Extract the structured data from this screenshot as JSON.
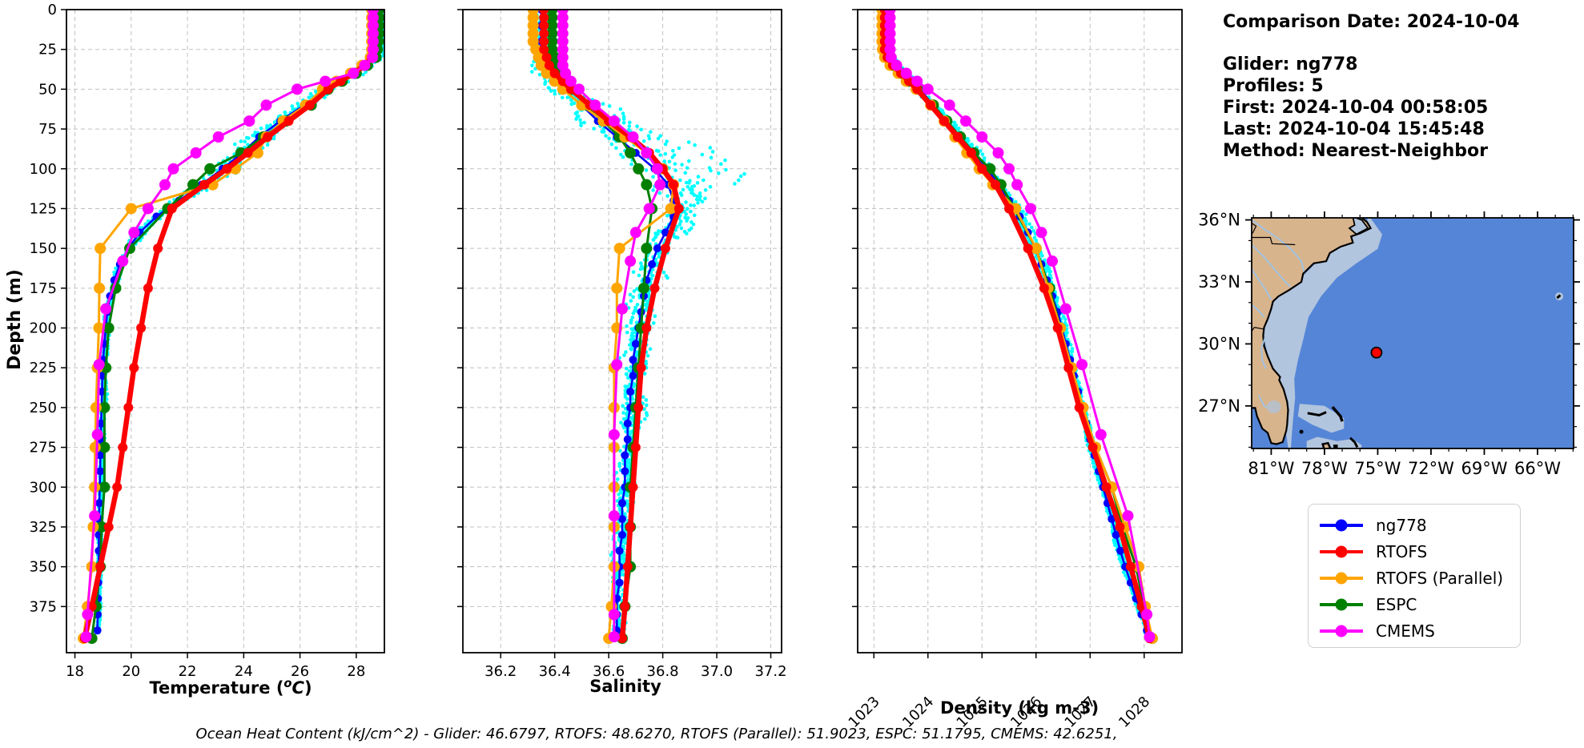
{
  "info_panel": {
    "comparison_date": "Comparison Date: 2024-10-04",
    "glider": "Glider: ng778",
    "profiles": "Profiles: 5",
    "first": "First: 2024-10-04 00:58:05",
    "last": "Last: 2024-10-04 15:45:48",
    "method": "Method: Nearest-Neighbor"
  },
  "footer": {
    "text": "Ocean Heat Content (kJ/cm^2) - Glider: 46.6797,  RTOFS: 48.6270,  RTOFS (Parallel): 51.9023,  ESPC: 51.1795,  CMEMS: 42.6251,"
  },
  "legend": {
    "items": [
      {
        "label": "ng778",
        "color": "#0000ff"
      },
      {
        "label": "RTOFS",
        "color": "#ff0000"
      },
      {
        "label": "RTOFS (Parallel)",
        "color": "#ffa500"
      },
      {
        "label": "ESPC",
        "color": "#008000"
      },
      {
        "label": "CMEMS",
        "color": "#ff00ff"
      }
    ]
  },
  "axis_titles": {
    "depth": "Depth (m)",
    "temperature_prefix": "Temperature (",
    "temperature_sup": "o",
    "temperature_ital": "C",
    "temperature_suffix": ")",
    "salinity": "Salinity",
    "density": "Density (kg m-3)"
  },
  "chart_data": {
    "type": "line",
    "subtype": "ocean-depth-profiles",
    "ylabel": "Depth (m)",
    "ylim": [
      0,
      404
    ],
    "yticks": [
      0,
      25,
      50,
      75,
      100,
      125,
      150,
      175,
      200,
      225,
      250,
      275,
      300,
      325,
      350,
      375
    ],
    "grid": true,
    "legend_position": "lower right (separate box)",
    "panels": [
      {
        "id": "temperature",
        "xlabel": "Temperature (°C)",
        "xlim": [
          17.7,
          29.0
        ],
        "xticks": [
          18,
          20,
          22,
          24,
          26,
          28
        ],
        "xtick_labels": [
          "18",
          "20",
          "22",
          "24",
          "26",
          "28"
        ],
        "tick_rotation": 0
      },
      {
        "id": "salinity",
        "xlabel": "Salinity",
        "xlim": [
          36.06,
          37.24
        ],
        "xticks": [
          36.2,
          36.4,
          36.6,
          36.8,
          37.0,
          37.2
        ],
        "xtick_labels": [
          "36.2",
          "36.4",
          "36.6",
          "36.8",
          "37.0",
          "37.2"
        ],
        "tick_rotation": 0
      },
      {
        "id": "density",
        "xlabel": "Density (kg m-3)",
        "xlim": [
          1022.7,
          1028.7
        ],
        "xticks": [
          1023,
          1024,
          1025,
          1026,
          1027,
          1028
        ],
        "xtick_labels": [
          "1023",
          "1024",
          "1025",
          "1026",
          "1027",
          "1028"
        ],
        "tick_rotation": 45
      }
    ],
    "series": [
      {
        "name": "ng778",
        "color": "#0000ff",
        "line_width": 2.6,
        "marker_r": 5,
        "depths": [
          0,
          10,
          20,
          30,
          40,
          50,
          60,
          70,
          80,
          90,
          100,
          110,
          120,
          130,
          140,
          150,
          160,
          170,
          180,
          190,
          200,
          210,
          220,
          230,
          240,
          250,
          260,
          270,
          280,
          290,
          300,
          310,
          320,
          330,
          340,
          350,
          360,
          370,
          380,
          390
        ],
        "temperature": [
          28.75,
          28.75,
          28.74,
          28.7,
          27.95,
          26.9,
          26.15,
          25.3,
          24.55,
          23.95,
          23.25,
          22.5,
          21.7,
          20.9,
          20.3,
          19.9,
          19.6,
          19.4,
          19.25,
          19.15,
          19.1,
          19.05,
          19.0,
          18.98,
          18.96,
          18.95,
          18.93,
          18.92,
          18.9,
          18.9,
          18.88,
          18.87,
          18.86,
          18.85,
          18.85,
          18.84,
          18.83,
          18.82,
          18.81,
          18.8
        ],
        "salinity": [
          36.35,
          36.35,
          36.35,
          36.35,
          36.38,
          36.43,
          36.5,
          36.56,
          36.63,
          36.7,
          36.77,
          36.82,
          36.84,
          36.84,
          36.81,
          36.78,
          36.76,
          36.74,
          36.73,
          36.72,
          36.71,
          36.7,
          36.69,
          36.69,
          36.68,
          36.68,
          36.67,
          36.67,
          36.66,
          36.66,
          36.66,
          36.65,
          36.65,
          36.65,
          36.64,
          36.64,
          36.64,
          36.63,
          36.63,
          36.63
        ],
        "density": [
          1023.25,
          1023.25,
          1023.25,
          1023.3,
          1023.55,
          1023.85,
          1024.1,
          1024.35,
          1024.6,
          1024.85,
          1025.1,
          1025.3,
          1025.5,
          1025.7,
          1025.85,
          1025.98,
          1026.1,
          1026.2,
          1026.3,
          1026.4,
          1026.48,
          1026.55,
          1026.63,
          1026.7,
          1026.78,
          1026.85,
          1026.93,
          1027.0,
          1027.08,
          1027.16,
          1027.24,
          1027.32,
          1027.4,
          1027.48,
          1027.56,
          1027.65,
          1027.75,
          1027.85,
          1027.95,
          1028.05
        ]
      },
      {
        "name": "RTOFS",
        "color": "#ff0000",
        "line_width": 6.5,
        "marker_r": 6,
        "depths": [
          0,
          5,
          10,
          15,
          20,
          25,
          30,
          35,
          40,
          45,
          50,
          60,
          70,
          80,
          90,
          100,
          110,
          125,
          150,
          175,
          200,
          225,
          250,
          275,
          300,
          325,
          350,
          375,
          395
        ],
        "temperature": [
          28.6,
          28.6,
          28.6,
          28.6,
          28.6,
          28.6,
          28.55,
          28.3,
          27.9,
          27.45,
          27.0,
          26.35,
          25.6,
          24.85,
          24.15,
          23.4,
          22.6,
          21.45,
          20.95,
          20.6,
          20.35,
          20.1,
          19.9,
          19.7,
          19.5,
          19.2,
          18.9,
          18.6,
          18.35
        ],
        "salinity": [
          36.36,
          36.36,
          36.36,
          36.36,
          36.36,
          36.36,
          36.37,
          36.38,
          36.4,
          36.43,
          36.46,
          36.53,
          36.6,
          36.68,
          36.75,
          36.8,
          36.84,
          36.86,
          36.81,
          36.77,
          36.74,
          36.72,
          36.71,
          36.7,
          36.69,
          36.68,
          36.67,
          36.66,
          36.65
        ],
        "density": [
          1023.2,
          1023.2,
          1023.2,
          1023.2,
          1023.2,
          1023.2,
          1023.25,
          1023.35,
          1023.5,
          1023.65,
          1023.8,
          1024.05,
          1024.3,
          1024.55,
          1024.8,
          1025.0,
          1025.25,
          1025.5,
          1025.85,
          1026.15,
          1026.4,
          1026.6,
          1026.8,
          1027.05,
          1027.3,
          1027.55,
          1027.75,
          1027.95,
          1028.1
        ]
      },
      {
        "name": "RTOFS (Parallel)",
        "color": "#ffa500",
        "line_width": 3,
        "marker_r": 7,
        "depths": [
          0,
          5,
          10,
          15,
          20,
          25,
          30,
          35,
          40,
          45,
          50,
          60,
          70,
          80,
          90,
          100,
          110,
          125,
          150,
          175,
          200,
          225,
          250,
          275,
          300,
          325,
          350,
          375,
          395
        ],
        "temperature": [
          28.55,
          28.55,
          28.55,
          28.55,
          28.55,
          28.55,
          28.5,
          28.2,
          27.8,
          27.3,
          26.8,
          26.2,
          25.4,
          24.8,
          24.5,
          23.7,
          22.9,
          20.0,
          18.9,
          18.87,
          18.85,
          18.8,
          18.75,
          18.72,
          18.7,
          18.65,
          18.6,
          18.45,
          18.3
        ],
        "salinity": [
          36.32,
          36.32,
          36.32,
          36.32,
          36.32,
          36.33,
          36.34,
          36.35,
          36.37,
          36.4,
          36.43,
          36.5,
          36.58,
          36.66,
          36.74,
          36.8,
          36.84,
          36.83,
          36.64,
          36.63,
          36.63,
          36.62,
          36.62,
          36.62,
          36.62,
          36.62,
          36.62,
          36.61,
          36.6
        ],
        "density": [
          1023.15,
          1023.15,
          1023.15,
          1023.15,
          1023.15,
          1023.16,
          1023.2,
          1023.3,
          1023.45,
          1023.6,
          1023.78,
          1024.05,
          1024.3,
          1024.5,
          1024.72,
          1024.95,
          1025.2,
          1025.62,
          1026.0,
          1026.22,
          1026.45,
          1026.66,
          1026.87,
          1027.1,
          1027.4,
          1027.65,
          1027.9,
          1028.02,
          1028.15
        ]
      },
      {
        "name": "ESPC",
        "color": "#008000",
        "line_width": 3,
        "marker_r": 7,
        "depths": [
          0,
          5,
          10,
          15,
          20,
          25,
          30,
          35,
          40,
          45,
          50,
          60,
          70,
          80,
          90,
          100,
          110,
          125,
          150,
          175,
          200,
          225,
          250,
          275,
          300,
          325,
          350,
          375,
          395
        ],
        "temperature": [
          28.8,
          28.8,
          28.8,
          28.8,
          28.78,
          28.75,
          28.7,
          28.4,
          28.0,
          27.5,
          27.0,
          26.4,
          25.5,
          24.7,
          23.9,
          22.8,
          22.2,
          21.3,
          19.95,
          19.45,
          19.2,
          19.1,
          19.05,
          19.05,
          19.05,
          18.95,
          18.9,
          18.75,
          18.6
        ],
        "salinity": [
          36.39,
          36.39,
          36.39,
          36.39,
          36.39,
          36.39,
          36.4,
          36.4,
          36.41,
          36.43,
          36.46,
          36.52,
          36.58,
          36.64,
          36.68,
          36.71,
          36.74,
          36.76,
          36.74,
          36.73,
          36.72,
          36.71,
          36.7,
          36.69,
          36.68,
          36.68,
          36.68,
          36.66,
          36.65
        ],
        "density": [
          1023.2,
          1023.2,
          1023.2,
          1023.2,
          1023.2,
          1023.21,
          1023.25,
          1023.35,
          1023.5,
          1023.65,
          1023.82,
          1024.1,
          1024.35,
          1024.6,
          1024.85,
          1025.15,
          1025.35,
          1025.6,
          1026.0,
          1026.25,
          1026.45,
          1026.65,
          1026.85,
          1027.1,
          1027.4,
          1027.6,
          1027.85,
          1028.0,
          1028.15
        ]
      },
      {
        "name": "CMEMS",
        "color": "#ff00ff",
        "line_width": 3,
        "marker_r": 7,
        "depths": [
          0,
          5,
          10,
          15,
          20,
          25,
          30,
          35,
          40,
          45,
          50,
          60,
          70,
          80,
          90,
          100,
          110,
          125,
          140,
          158,
          188,
          223,
          267,
          318,
          380,
          394
        ],
        "temperature": [
          28.6,
          28.6,
          28.6,
          28.6,
          28.6,
          28.6,
          28.58,
          28.3,
          27.9,
          26.9,
          25.9,
          24.8,
          24.2,
          23.1,
          22.3,
          21.5,
          21.2,
          20.6,
          20.1,
          19.7,
          19.1,
          18.86,
          18.8,
          18.7,
          18.45,
          18.4
        ],
        "salinity": [
          36.43,
          36.43,
          36.43,
          36.43,
          36.43,
          36.43,
          36.43,
          36.43,
          36.44,
          36.46,
          36.49,
          36.55,
          36.62,
          36.69,
          36.74,
          36.78,
          36.79,
          36.75,
          36.7,
          36.68,
          36.65,
          36.63,
          36.62,
          36.62,
          36.62,
          36.62
        ],
        "density": [
          1023.3,
          1023.3,
          1023.3,
          1023.3,
          1023.3,
          1023.3,
          1023.32,
          1023.42,
          1023.6,
          1023.8,
          1024.0,
          1024.4,
          1024.7,
          1025.0,
          1025.3,
          1025.5,
          1025.65,
          1025.9,
          1026.1,
          1026.3,
          1026.55,
          1026.85,
          1027.2,
          1027.7,
          1028.05,
          1028.1
        ]
      }
    ],
    "raw_glider_scatter": {
      "name": "ng778 raw profiles",
      "color": "#00ffff",
      "profiles": 5,
      "marker_r": 2.3,
      "depth_step": 2,
      "temp_amp": [
        [
          0,
          0.07
        ],
        [
          35,
          0.2
        ],
        [
          60,
          0.45
        ],
        [
          100,
          0.5
        ],
        [
          130,
          0.3
        ],
        [
          170,
          0.12
        ],
        [
          404,
          0.07
        ]
      ],
      "sal_amp": [
        [
          0,
          0.035
        ],
        [
          55,
          0.07
        ],
        [
          90,
          0.1
        ],
        [
          130,
          0.07
        ],
        [
          404,
          0.02
        ]
      ],
      "sal_plume": {
        "center": 95,
        "sigma": 25,
        "max": 0.2
      },
      "dens_amp": [
        [
          0,
          0.05
        ],
        [
          40,
          0.1
        ],
        [
          100,
          0.13
        ],
        [
          150,
          0.09
        ],
        [
          404,
          0.04
        ]
      ]
    }
  },
  "map": {
    "lon_ticks": [
      -81,
      -78,
      -75,
      -72,
      -69,
      -66
    ],
    "lon_tick_labels": [
      "81°W",
      "78°W",
      "75°W",
      "72°W",
      "69°W",
      "66°W"
    ],
    "lat_ticks": [
      36,
      33,
      30,
      27
    ],
    "lat_tick_labels": [
      "36°N",
      "33°N",
      "30°N",
      "27°N"
    ],
    "lon_range": [
      -82.1,
      -63.97
    ],
    "lat_range": [
      24.94,
      36.1
    ],
    "marker": {
      "lon": -75.07,
      "lat": 29.58,
      "color": "#ff0000"
    },
    "colors": {
      "ocean": "#5585d7",
      "shelf": "#b2c5de",
      "land": "#d7b48c",
      "lake": "#b9bfc7",
      "river": "#9ec4e8",
      "coast": "#000000"
    }
  }
}
